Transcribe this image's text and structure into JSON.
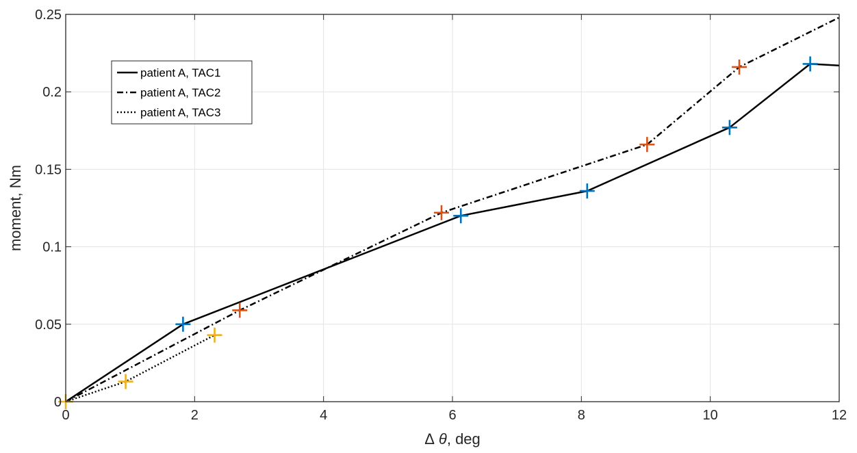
{
  "chart_data": {
    "type": "line",
    "title": "",
    "xlabel": "Δ θ, deg",
    "xlabel_parts": {
      "delta": "Δ",
      "theta": "θ",
      "unit": ", deg"
    },
    "ylabel": "moment, Nm",
    "xlim": [
      0,
      12
    ],
    "ylim": [
      0,
      0.25
    ],
    "xticks": [
      0,
      2,
      4,
      6,
      8,
      10,
      12
    ],
    "xtick_labels": [
      "0",
      "2",
      "4",
      "6",
      "8",
      "10",
      "12"
    ],
    "yticks": [
      0,
      0.05,
      0.1,
      0.15,
      0.2,
      0.25
    ],
    "ytick_labels": [
      "0",
      "0.05",
      "0.1",
      "0.15",
      "0.2",
      "0.25"
    ],
    "grid": true,
    "legend_position": "top-left",
    "series": [
      {
        "name": "patient A, TAC1",
        "line_style": "solid",
        "line_color": "#000000",
        "x": [
          0,
          1.82,
          6.13,
          8.09,
          10.3,
          11.55,
          12.0
        ],
        "y": [
          0,
          0.05,
          0.12,
          0.136,
          0.177,
          0.218,
          0.217
        ]
      },
      {
        "name": "patient A, TAC2",
        "line_style": "dashdot",
        "line_color": "#000000",
        "x": [
          0,
          2.7,
          5.83,
          9.02,
          10.45,
          12.0
        ],
        "y": [
          0,
          0.059,
          0.122,
          0.166,
          0.216,
          0.248
        ]
      },
      {
        "name": "patient A, TAC3",
        "line_style": "dotted",
        "line_color": "#000000",
        "x": [
          0,
          0.93,
          2.31
        ],
        "y": [
          0,
          0.013,
          0.043
        ]
      }
    ],
    "markers": [
      {
        "color": "#0072BD",
        "x": [
          1.82,
          6.13,
          8.09,
          10.3,
          11.55
        ],
        "y": [
          0.05,
          0.12,
          0.136,
          0.177,
          0.218
        ]
      },
      {
        "color": "#D95319",
        "x": [
          2.7,
          5.83,
          9.02,
          10.45
        ],
        "y": [
          0.059,
          0.122,
          0.166,
          0.216
        ]
      },
      {
        "color": "#EDB120",
        "x": [
          0,
          0.93,
          2.31
        ],
        "y": [
          0,
          0.013,
          0.043
        ]
      }
    ]
  }
}
